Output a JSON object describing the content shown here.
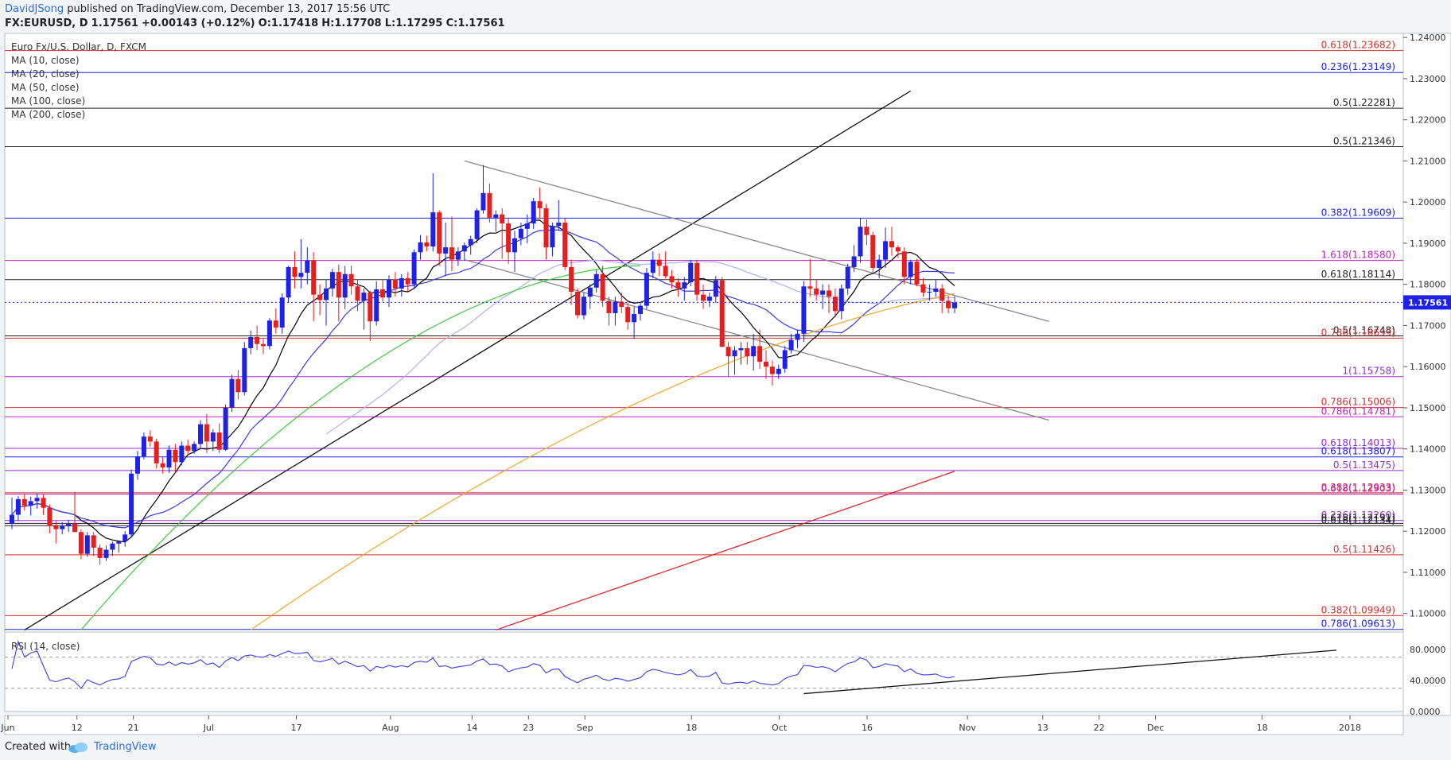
{
  "header": {
    "author": "DavidJSong",
    "published": "published on TradingView.com, December 13, 2017 15:56 UTC",
    "symbol": "FX:EURUSD, D",
    "last": "1.17561",
    "change": "+0.00143 (+0.12%)",
    "o_label": "O:",
    "o_value": "1.17418",
    "h_label": "H:",
    "h_value": "1.17708",
    "l_label": "L:",
    "l_value": "1.17295",
    "c_label": "C:",
    "c_value": "1.17561"
  },
  "footer": {
    "created": "Created with",
    "brand": "TradingView"
  },
  "colors": {
    "up": "#1e22e6",
    "down": "#e61e1e",
    "ma10": "#000000",
    "ma20": "#3b3be6",
    "ma50": "#aab4f0",
    "ma100": "#3ccd3c",
    "ma200": "#f5a623",
    "ma200b": "#e61e1e",
    "price_tag": "#1e22e6",
    "rsi": "#3b3be6"
  },
  "chart_data": [
    {
      "type": "candlestick",
      "legend": [
        "Euro Fx/U.S. Dollar, D, FXCM",
        "MA (10, close)",
        "MA (20, close)",
        "MA (50, close)",
        "MA (100, close)",
        "MA (200, close)"
      ],
      "ylim": [
        1.0955,
        1.241
      ],
      "y_ticks": [
        "1.24000",
        "1.23000",
        "1.22000",
        "1.21000",
        "1.20000",
        "1.19000",
        "1.18000",
        "1.17000",
        "1.16000",
        "1.15000",
        "1.14000",
        "1.13000",
        "1.12000",
        "1.11000",
        "1.10000"
      ],
      "y_tick_values": [
        1.24,
        1.23,
        1.22,
        1.21,
        1.2,
        1.19,
        1.18,
        1.17,
        1.16,
        1.15,
        1.14,
        1.13,
        1.12,
        1.11,
        1.1
      ],
      "x_ticks": [
        "Jun",
        "12",
        "21",
        "Jul",
        "17",
        "Aug",
        "14",
        "23",
        "Sep",
        "18",
        "Oct",
        "16",
        "Nov",
        "13",
        "22",
        "Dec",
        "18",
        "2018"
      ],
      "x_tick_dates": [
        "2017-06-01",
        "2017-06-12",
        "2017-06-21",
        "2017-07-03",
        "2017-07-17",
        "2017-08-01",
        "2017-08-14",
        "2017-08-23",
        "2017-09-01",
        "2017-09-18",
        "2017-10-02",
        "2017-10-16",
        "2017-11-01",
        "2017-11-13",
        "2017-11-22",
        "2017-12-01",
        "2017-12-18",
        "2018-01-01"
      ],
      "last_price": "1.17561",
      "last_price_value": 1.17561,
      "fib_levels": [
        {
          "label": "0.618(1.23682)",
          "value": 1.23682,
          "color": "#d32f2f"
        },
        {
          "label": "0.236(1.23149)",
          "value": 1.23149,
          "color": "#1e22e6"
        },
        {
          "label": "0.5(1.22281)",
          "value": 1.22281,
          "color": "#222222"
        },
        {
          "label": "0.5(1.21346)",
          "value": 1.21346,
          "color": "#222222"
        },
        {
          "label": "0.382(1.19609)",
          "value": 1.19609,
          "color": "#1e22e6"
        },
        {
          "label": "1.618(1.18580)",
          "value": 1.1858,
          "color": "#c020c0"
        },
        {
          "label": "0.618(1.18114)",
          "value": 1.18114,
          "color": "#222222"
        },
        {
          "label": "0.5(1.16748)",
          "value": 1.16748,
          "color": "#222222"
        },
        {
          "label": "0.786(1.16693)",
          "value": 1.16693,
          "color": "#d32f2f"
        },
        {
          "label": "1(1.15758)",
          "value": 1.15758,
          "color": "#9a28d8"
        },
        {
          "label": "0.786(1.15006)",
          "value": 1.15006,
          "color": "#d32f2f"
        },
        {
          "label": "0.786(1.14781)",
          "value": 1.14781,
          "color": "#c020c0"
        },
        {
          "label": "0.618(1.14013)",
          "value": 1.14013,
          "color": "#9a28d8"
        },
        {
          "label": "0.618(1.13807)",
          "value": 1.13807,
          "color": "#1e22e6"
        },
        {
          "label": "0.5(1.13475)",
          "value": 1.13475,
          "color": "#9a28d8"
        },
        {
          "label": "0.382(1.12933)",
          "value": 1.12933,
          "color": "#d32f2f"
        },
        {
          "label": "0.618(1.12903)",
          "value": 1.12903,
          "color": "#c020c0"
        },
        {
          "label": "0.236(1.12260)",
          "value": 1.1226,
          "color": "#9a28d8"
        },
        {
          "label": "0.618(1.12191)",
          "value": 1.12191,
          "color": "#222222"
        },
        {
          "label": "0.618(1.12134)",
          "value": 1.12134,
          "color": "#222222"
        },
        {
          "label": "0.5(1.11426)",
          "value": 1.11426,
          "color": "#d32f2f"
        },
        {
          "label": "0.382(1.09949)",
          "value": 1.09949,
          "color": "#d32f2f"
        },
        {
          "label": "0.786(1.09613)",
          "value": 1.09613,
          "color": "#1e22e6"
        }
      ],
      "candles_ohlc": [
        [
          1.1218,
          1.1282,
          1.1205,
          1.124
        ],
        [
          1.124,
          1.1285,
          1.1225,
          1.1278
        ],
        [
          1.1278,
          1.129,
          1.125,
          1.1262
        ],
        [
          1.1262,
          1.1284,
          1.1238,
          1.1273
        ],
        [
          1.1273,
          1.1292,
          1.1255,
          1.1281
        ],
        [
          1.1281,
          1.1289,
          1.124,
          1.1257
        ],
        [
          1.1257,
          1.1265,
          1.1195,
          1.1213
        ],
        [
          1.1213,
          1.1225,
          1.117,
          1.1205
        ],
        [
          1.1205,
          1.1222,
          1.1192,
          1.1212
        ],
        [
          1.1212,
          1.1228,
          1.1198,
          1.1218
        ],
        [
          1.1218,
          1.1295,
          1.121,
          1.1198
        ],
        [
          1.1198,
          1.1205,
          1.1132,
          1.1145
        ],
        [
          1.1145,
          1.1198,
          1.1138,
          1.119
        ],
        [
          1.119,
          1.1198,
          1.114,
          1.116
        ],
        [
          1.116,
          1.1168,
          1.1119,
          1.1135
        ],
        [
          1.1135,
          1.1165,
          1.1128,
          1.1155
        ],
        [
          1.1155,
          1.1175,
          1.114,
          1.117
        ],
        [
          1.117,
          1.1178,
          1.1148,
          1.1175
        ],
        [
          1.1175,
          1.12,
          1.1162,
          1.1192
        ],
        [
          1.1192,
          1.135,
          1.1185,
          1.134
        ],
        [
          1.134,
          1.1395,
          1.1325,
          1.1382
        ],
        [
          1.1382,
          1.144,
          1.1375,
          1.143
        ],
        [
          1.143,
          1.1445,
          1.1405,
          1.1418
        ],
        [
          1.1418,
          1.1425,
          1.1352,
          1.1365
        ],
        [
          1.1365,
          1.138,
          1.134,
          1.1355
        ],
        [
          1.1355,
          1.1408,
          1.1342,
          1.1398
        ],
        [
          1.1398,
          1.1412,
          1.1342,
          1.1368
        ],
        [
          1.1368,
          1.1418,
          1.136,
          1.1408
        ],
        [
          1.1408,
          1.1422,
          1.1385,
          1.1395
        ],
        [
          1.1395,
          1.1418,
          1.1388,
          1.1412
        ],
        [
          1.1412,
          1.147,
          1.14,
          1.146
        ],
        [
          1.146,
          1.1485,
          1.139,
          1.1418
        ],
        [
          1.1418,
          1.1448,
          1.1395,
          1.144
        ],
        [
          1.144,
          1.1462,
          1.139,
          1.1398
        ],
        [
          1.1398,
          1.1508,
          1.1395,
          1.15
        ],
        [
          1.15,
          1.158,
          1.149,
          1.157
        ],
        [
          1.157,
          1.1592,
          1.152,
          1.1538
        ],
        [
          1.1538,
          1.166,
          1.153,
          1.1645
        ],
        [
          1.1645,
          1.1688,
          1.163,
          1.1672
        ],
        [
          1.1672,
          1.17,
          1.164,
          1.1655
        ],
        [
          1.1655,
          1.1668,
          1.163,
          1.165
        ],
        [
          1.165,
          1.1718,
          1.1642,
          1.1712
        ],
        [
          1.1712,
          1.1742,
          1.168,
          1.1695
        ],
        [
          1.1695,
          1.1778,
          1.168,
          1.1768
        ],
        [
          1.1768,
          1.1845,
          1.1755,
          1.1842
        ],
        [
          1.1842,
          1.188,
          1.179,
          1.1818
        ],
        [
          1.1818,
          1.191,
          1.179,
          1.1828
        ],
        [
          1.1828,
          1.189,
          1.18,
          1.1858
        ],
        [
          1.1858,
          1.1878,
          1.171,
          1.1775
        ],
        [
          1.1775,
          1.18,
          1.1725,
          1.1762
        ],
        [
          1.1762,
          1.1812,
          1.17,
          1.179
        ],
        [
          1.179,
          1.1838,
          1.177,
          1.183
        ],
        [
          1.183,
          1.1848,
          1.171,
          1.1768
        ],
        [
          1.1768,
          1.1845,
          1.174,
          1.1825
        ],
        [
          1.1825,
          1.1845,
          1.1775,
          1.1795
        ],
        [
          1.1795,
          1.1812,
          1.1735,
          1.176
        ],
        [
          1.176,
          1.179,
          1.169,
          1.178
        ],
        [
          1.178,
          1.1785,
          1.1662,
          1.171
        ],
        [
          1.171,
          1.1808,
          1.17,
          1.1788
        ],
        [
          1.1788,
          1.1812,
          1.1758,
          1.1768
        ],
        [
          1.1768,
          1.1822,
          1.1745,
          1.1812
        ],
        [
          1.1812,
          1.183,
          1.177,
          1.179
        ],
        [
          1.179,
          1.1825,
          1.177,
          1.1815
        ],
        [
          1.1815,
          1.183,
          1.178,
          1.18
        ],
        [
          1.18,
          1.1885,
          1.179,
          1.1878
        ],
        [
          1.1878,
          1.192,
          1.186,
          1.1902
        ],
        [
          1.1902,
          1.1918,
          1.188,
          1.1892
        ],
        [
          1.1892,
          1.207,
          1.188,
          1.1975
        ],
        [
          1.1975,
          1.198,
          1.1845,
          1.1875
        ],
        [
          1.1875,
          1.195,
          1.182,
          1.189
        ],
        [
          1.189,
          1.1965,
          1.1832,
          1.186
        ],
        [
          1.186,
          1.189,
          1.1845,
          1.188
        ],
        [
          1.188,
          1.1902,
          1.1858,
          1.1895
        ],
        [
          1.1895,
          1.1918,
          1.1872,
          1.191
        ],
        [
          1.191,
          1.1985,
          1.19,
          1.198
        ],
        [
          1.198,
          1.209,
          1.1972,
          1.2022
        ],
        [
          1.2022,
          1.2045,
          1.195,
          1.1962
        ],
        [
          1.1962,
          1.198,
          1.1928,
          1.197
        ],
        [
          1.197,
          1.1985,
          1.1862,
          1.1948
        ],
        [
          1.1948,
          1.1962,
          1.185,
          1.1878
        ],
        [
          1.1878,
          1.193,
          1.183,
          1.1912
        ],
        [
          1.1912,
          1.195,
          1.1895,
          1.1935
        ],
        [
          1.1935,
          1.197,
          1.19,
          1.1948
        ],
        [
          1.1948,
          1.201,
          1.1935,
          1.2002
        ],
        [
          1.2002,
          1.2035,
          1.196,
          1.1985
        ],
        [
          1.1985,
          1.1995,
          1.186,
          1.189
        ],
        [
          1.189,
          1.195,
          1.1868,
          1.1942
        ],
        [
          1.1942,
          1.2005,
          1.1932,
          1.195
        ],
        [
          1.195,
          1.196,
          1.1835,
          1.1842
        ],
        [
          1.1842,
          1.186,
          1.175,
          1.1782
        ],
        [
          1.1782,
          1.179,
          1.1717,
          1.1725
        ],
        [
          1.1725,
          1.178,
          1.1715,
          1.177
        ],
        [
          1.177,
          1.18,
          1.174,
          1.1792
        ],
        [
          1.1792,
          1.1835,
          1.178,
          1.1825
        ],
        [
          1.1825,
          1.1845,
          1.1745,
          1.176
        ],
        [
          1.176,
          1.177,
          1.17,
          1.173
        ],
        [
          1.173,
          1.177,
          1.17,
          1.1758
        ],
        [
          1.1758,
          1.178,
          1.173,
          1.1745
        ],
        [
          1.1745,
          1.176,
          1.169,
          1.1708
        ],
        [
          1.1708,
          1.1745,
          1.1668,
          1.1728
        ],
        [
          1.1728,
          1.1755,
          1.1712,
          1.1748
        ],
        [
          1.1748,
          1.184,
          1.174,
          1.1828
        ],
        [
          1.1828,
          1.188,
          1.1815,
          1.186
        ],
        [
          1.186,
          1.1875,
          1.182,
          1.1845
        ],
        [
          1.1845,
          1.188,
          1.1815,
          1.182
        ],
        [
          1.182,
          1.1835,
          1.179,
          1.1805
        ],
        [
          1.1805,
          1.1815,
          1.177,
          1.179
        ],
        [
          1.179,
          1.1818,
          1.176,
          1.1805
        ],
        [
          1.1805,
          1.186,
          1.1795,
          1.1852
        ],
        [
          1.1852,
          1.186,
          1.176,
          1.1775
        ],
        [
          1.1775,
          1.18,
          1.174,
          1.176
        ],
        [
          1.176,
          1.178,
          1.1745,
          1.177
        ],
        [
          1.177,
          1.182,
          1.1755,
          1.181
        ],
        [
          1.181,
          1.1818,
          1.165,
          1.1648
        ],
        [
          1.1648,
          1.166,
          1.1575,
          1.1625
        ],
        [
          1.1625,
          1.165,
          1.158,
          1.164
        ],
        [
          1.164,
          1.166,
          1.1605,
          1.1645
        ],
        [
          1.1645,
          1.166,
          1.1605,
          1.1625
        ],
        [
          1.1625,
          1.168,
          1.159,
          1.165
        ],
        [
          1.165,
          1.169,
          1.1595,
          1.1612
        ],
        [
          1.1612,
          1.164,
          1.157,
          1.16
        ],
        [
          1.16,
          1.1615,
          1.1554,
          1.1582
        ],
        [
          1.1582,
          1.1605,
          1.157,
          1.1595
        ],
        [
          1.1595,
          1.165,
          1.1585,
          1.164
        ],
        [
          1.164,
          1.168,
          1.1632,
          1.1665
        ],
        [
          1.1665,
          1.169,
          1.1645,
          1.168
        ],
        [
          1.168,
          1.1808,
          1.166,
          1.1795
        ],
        [
          1.1795,
          1.1862,
          1.177,
          1.179
        ],
        [
          1.179,
          1.181,
          1.176,
          1.1775
        ],
        [
          1.1775,
          1.18,
          1.174,
          1.1785
        ],
        [
          1.1785,
          1.18,
          1.173,
          1.177
        ],
        [
          1.177,
          1.179,
          1.172,
          1.1735
        ],
        [
          1.1735,
          1.18,
          1.1715,
          1.179
        ],
        [
          1.179,
          1.185,
          1.1775,
          1.1842
        ],
        [
          1.1842,
          1.1895,
          1.183,
          1.1868
        ],
        [
          1.1868,
          1.1961,
          1.1852,
          1.194
        ],
        [
          1.194,
          1.1958,
          1.1895,
          1.192
        ],
        [
          1.192,
          1.1928,
          1.183,
          1.184
        ],
        [
          1.184,
          1.1872,
          1.1815,
          1.186
        ],
        [
          1.186,
          1.1938,
          1.184,
          1.1905
        ],
        [
          1.1905,
          1.194,
          1.187,
          1.189
        ],
        [
          1.189,
          1.1895,
          1.1865,
          1.188
        ],
        [
          1.188,
          1.189,
          1.18,
          1.1818
        ],
        [
          1.1818,
          1.186,
          1.18,
          1.1855
        ],
        [
          1.1855,
          1.1862,
          1.1795,
          1.18
        ],
        [
          1.18,
          1.1815,
          1.177,
          1.178
        ],
        [
          1.178,
          1.18,
          1.176,
          1.1782
        ],
        [
          1.1782,
          1.181,
          1.177,
          1.179
        ],
        [
          1.179,
          1.18,
          1.173,
          1.176
        ],
        [
          1.176,
          1.1772,
          1.173,
          1.1742
        ],
        [
          1.1742,
          1.1771,
          1.173,
          1.1756
        ]
      ]
    },
    {
      "type": "line",
      "title": "RSI (14, close)",
      "ylim": [
        0,
        100
      ],
      "y_ticks": [
        "80.0000",
        "40.0000",
        "0.0000"
      ],
      "y_tick_values": [
        80,
        40,
        0
      ],
      "bands": [
        70,
        30
      ],
      "note_series": "RSI values track the daily candles"
    }
  ]
}
